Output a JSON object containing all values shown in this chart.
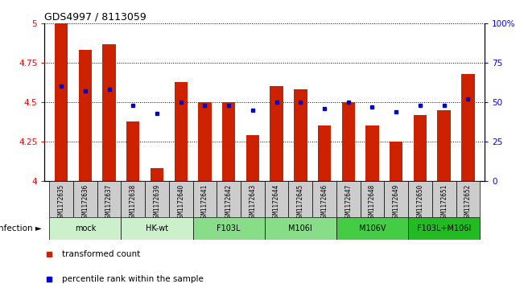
{
  "title": "GDS4997 / 8113059",
  "samples": [
    "GSM1172635",
    "GSM1172636",
    "GSM1172637",
    "GSM1172638",
    "GSM1172639",
    "GSM1172640",
    "GSM1172641",
    "GSM1172642",
    "GSM1172643",
    "GSM1172644",
    "GSM1172645",
    "GSM1172646",
    "GSM1172647",
    "GSM1172648",
    "GSM1172649",
    "GSM1172650",
    "GSM1172651",
    "GSM1172652"
  ],
  "transformed_count": [
    5.0,
    4.83,
    4.87,
    4.38,
    4.08,
    4.63,
    4.5,
    4.5,
    4.29,
    4.6,
    4.58,
    4.35,
    4.5,
    4.35,
    4.25,
    4.42,
    4.45,
    4.68
  ],
  "percentile_rank": [
    60,
    57,
    58,
    48,
    43,
    50,
    48,
    48,
    45,
    50,
    50,
    46,
    50,
    47,
    44,
    48,
    48,
    52
  ],
  "ylim_left": [
    4.0,
    5.0
  ],
  "ylim_right": [
    0,
    100
  ],
  "yticks_left": [
    4.0,
    4.25,
    4.5,
    4.75,
    5.0
  ],
  "ytick_labels_left": [
    "4",
    "4.25",
    "4.5",
    "4.75",
    "5"
  ],
  "yticks_right": [
    0,
    25,
    50,
    75,
    100
  ],
  "ytick_labels_right": [
    "0",
    "25",
    "50",
    "75",
    "100%"
  ],
  "groups": [
    {
      "label": "mock",
      "start": 0,
      "end": 2,
      "color": "#ccf0cc"
    },
    {
      "label": "HK-wt",
      "start": 3,
      "end": 5,
      "color": "#ccf0cc"
    },
    {
      "label": "F103L",
      "start": 6,
      "end": 8,
      "color": "#88dd88"
    },
    {
      "label": "M106I",
      "start": 9,
      "end": 11,
      "color": "#88dd88"
    },
    {
      "label": "M106V",
      "start": 12,
      "end": 14,
      "color": "#44cc44"
    },
    {
      "label": "F103L+M106I",
      "start": 15,
      "end": 17,
      "color": "#22bb22"
    }
  ],
  "bar_color": "#cc2200",
  "dot_color": "#0000cc",
  "bar_width": 0.55,
  "title_fontsize": 9,
  "sample_box_color": "#cccccc",
  "grid_color": "black"
}
